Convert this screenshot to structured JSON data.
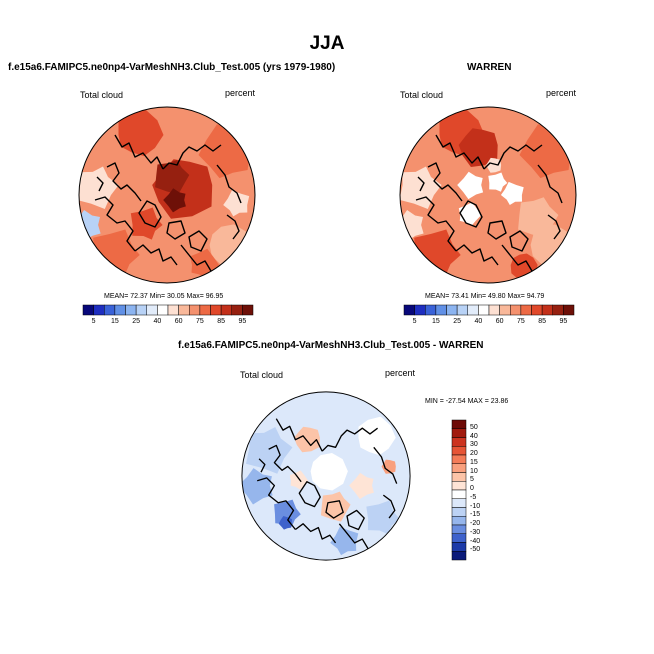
{
  "title": "JJA",
  "panels": [
    {
      "title": "f.e15a6.FAMIPC5.ne0np4-VarMeshNH3.Club_Test.005 (yrs 1979-1980)",
      "left_label": "Total cloud",
      "right_label": "percent",
      "stats": "MEAN=  72.37  Min=  30.05  Max=  96.95"
    },
    {
      "title": "WARREN",
      "left_label": "Total cloud",
      "right_label": "percent",
      "stats": "MEAN=  73.41  Min=  49.80  Max=  94.79"
    },
    {
      "title": "f.e15a6.FAMIPC5.ne0np4-VarMeshNH3.Club_Test.005 - WARREN",
      "left_label": "Total cloud",
      "right_label": "percent",
      "stats": "MIN = -27.54 MAX =  23.86"
    }
  ],
  "chart_data": [
    {
      "type": "heatmap",
      "projection": "polar-stereographic",
      "title": "f.e15a6.FAMIPC5.ne0np4-VarMeshNH3.Club_Test.005 (yrs 1979-1980)",
      "variable": "Total cloud",
      "units": "percent",
      "mean": 72.37,
      "min": 30.05,
      "max": 96.95,
      "colorbar": {
        "levels": [
          5,
          10,
          15,
          20,
          25,
          30,
          40,
          50,
          60,
          70,
          75,
          80,
          85,
          90,
          95
        ],
        "tick_labels": [
          "5",
          "15",
          "25",
          "40",
          "60",
          "75",
          "85",
          "95"
        ],
        "colors": [
          "#08087a",
          "#1e2ec0",
          "#3a62d8",
          "#6190e6",
          "#8cb4f0",
          "#b8d2f6",
          "#e2ecfa",
          "#ffffff",
          "#fde0d2",
          "#f9b89a",
          "#f4916e",
          "#ed6a45",
          "#e0482a",
          "#c3301a",
          "#962010",
          "#6e1008"
        ]
      }
    },
    {
      "type": "heatmap",
      "projection": "polar-stereographic",
      "title": "WARREN",
      "variable": "Total cloud",
      "units": "percent",
      "mean": 73.41,
      "min": 49.8,
      "max": 94.79,
      "colorbar": {
        "levels": [
          5,
          10,
          15,
          20,
          25,
          30,
          40,
          50,
          60,
          70,
          75,
          80,
          85,
          90,
          95
        ],
        "tick_labels": [
          "5",
          "15",
          "25",
          "40",
          "60",
          "75",
          "85",
          "95"
        ],
        "colors": [
          "#08087a",
          "#1e2ec0",
          "#3a62d8",
          "#6190e6",
          "#8cb4f0",
          "#b8d2f6",
          "#e2ecfa",
          "#ffffff",
          "#fde0d2",
          "#f9b89a",
          "#f4916e",
          "#ed6a45",
          "#e0482a",
          "#c3301a",
          "#962010",
          "#6e1008"
        ]
      }
    },
    {
      "type": "heatmap",
      "projection": "polar-stereographic",
      "title": "f.e15a6.FAMIPC5.ne0np4-VarMeshNH3.Club_Test.005 - WARREN",
      "variable": "Total cloud",
      "units": "percent",
      "min": -27.54,
      "max": 23.86,
      "colorbar": {
        "orientation": "vertical",
        "tick_labels": [
          "50",
          "40",
          "30",
          "20",
          "15",
          "10",
          "5",
          "0",
          "-5",
          "-10",
          "-15",
          "-20",
          "-30",
          "-40",
          "-50"
        ],
        "colors": [
          "#6e0a06",
          "#a11a0e",
          "#cc3420",
          "#e65536",
          "#f47c58",
          "#f9a07e",
          "#fcc4a8",
          "#fee4d6",
          "#ffffff",
          "#dce8fa",
          "#bcd2f4",
          "#96b6ec",
          "#6a8ee0",
          "#3e62cc",
          "#1c3aa8",
          "#0a1a7a"
        ]
      }
    }
  ]
}
